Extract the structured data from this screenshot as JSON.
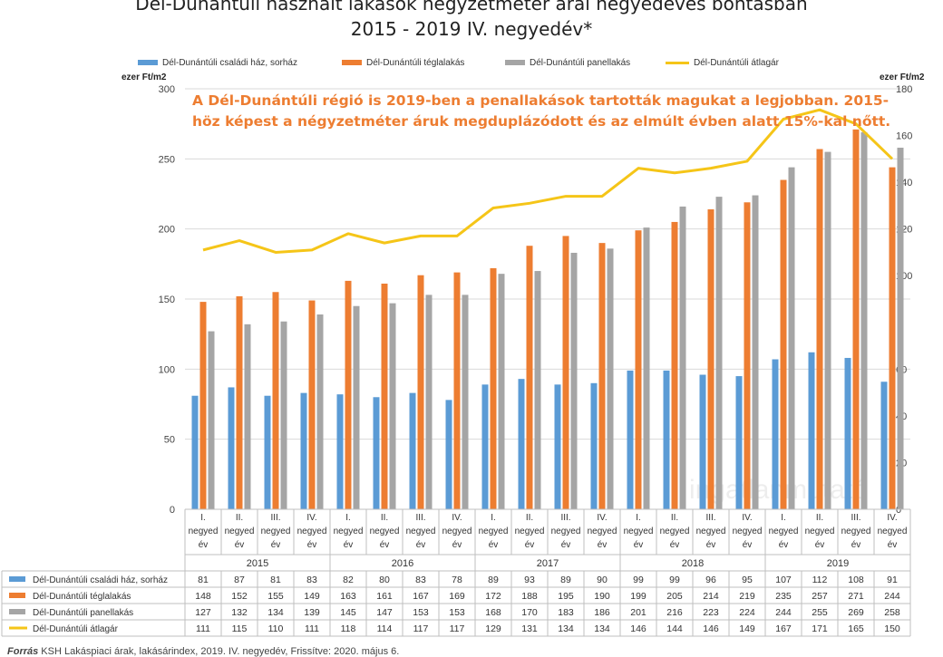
{
  "chart_data": {
    "type": "bar",
    "title": "Dél-Dunántúli használt lakások négyzetméter árai negyedéves bontásban",
    "subtitle": "2015 - 2019 IV. negyedév*",
    "ylabel": "ezer Ft/m2",
    "y2label": "ezer Ft/m2",
    "ylim": [
      0,
      300
    ],
    "yticks": [
      0,
      50,
      100,
      150,
      200,
      250,
      300
    ],
    "y2lim": [
      0,
      180
    ],
    "y2ticks": [
      0,
      20,
      40,
      60,
      100,
      120,
      140,
      160,
      180
    ],
    "quarters": [
      "I.",
      "II.",
      "III.",
      "IV."
    ],
    "period_word": "negyed év",
    "years": [
      "2015",
      "2016",
      "2017",
      "2018",
      "2019"
    ],
    "categories": [
      "2015 I.",
      "2015 II.",
      "2015 III.",
      "2015 IV.",
      "2016 I.",
      "2016 II.",
      "2016 III.",
      "2016 IV.",
      "2017 I.",
      "2017 II.",
      "2017 III.",
      "2017 IV.",
      "2018 I.",
      "2018 II.",
      "2018 III.",
      "2018 IV.",
      "2019 I.",
      "2019 II.",
      "2019 III.",
      "2019 IV."
    ],
    "series": [
      {
        "name": "Dél-Dunántúli családi ház, sorház",
        "type": "bar",
        "axis": "left",
        "color": "#5B9BD5",
        "values": [
          81,
          87,
          81,
          83,
          82,
          80,
          83,
          78,
          89,
          93,
          89,
          90,
          99,
          99,
          96,
          95,
          107,
          112,
          108,
          91
        ]
      },
      {
        "name": "Dél-Dunántúli téglalakás",
        "type": "bar",
        "axis": "left",
        "color": "#ED7D31",
        "values": [
          148,
          152,
          155,
          149,
          163,
          161,
          167,
          169,
          172,
          188,
          195,
          190,
          199,
          205,
          214,
          219,
          235,
          257,
          271,
          244
        ]
      },
      {
        "name": "Dél-Dunántúli panellakás",
        "type": "bar",
        "axis": "left",
        "color": "#A5A5A5",
        "values": [
          127,
          132,
          134,
          139,
          145,
          147,
          153,
          153,
          168,
          170,
          183,
          186,
          201,
          216,
          223,
          224,
          244,
          255,
          269,
          258
        ]
      },
      {
        "name": "Dél-Dunántúli átlagár",
        "type": "line",
        "axis": "right",
        "color": "#F5C518",
        "values": [
          111,
          115,
          110,
          111,
          118,
          114,
          117,
          117,
          129,
          131,
          134,
          134,
          146,
          144,
          146,
          149,
          167,
          171,
          165,
          150
        ]
      }
    ],
    "legend_position": "top",
    "annotation": "A Dél-Dunántúli régió is 2019-ben a penallakások tartották magukat a legjobban. 2015-höz képest a négyzetméter áruk megduplázódott és az elmúlt évben alatt 15%-kal nőtt."
  },
  "labels": {
    "left_unit": "ezer Ft/m2",
    "right_unit": "ezer Ft/m2",
    "watermark": "ingatlanmutató",
    "source_prefix": "Forrás",
    "source_text": " KSH Lakáspiaci árak, lakásárindex, 2019. IV. negyedév, Frissítve: 2020. május 6."
  }
}
